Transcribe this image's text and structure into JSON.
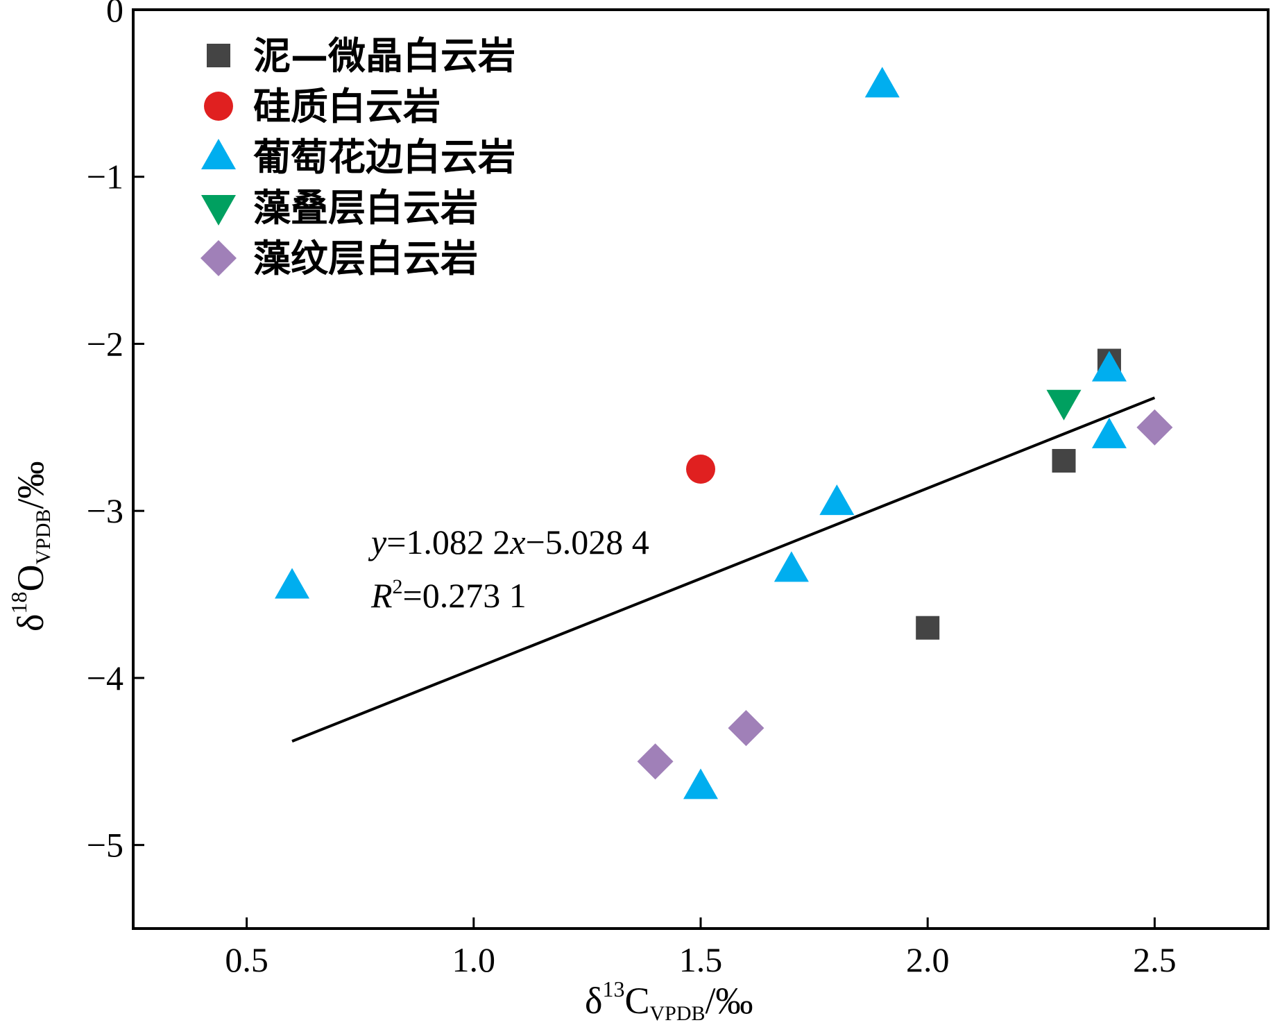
{
  "chart_data": {
    "type": "scatter",
    "title": "",
    "xlabel": {
      "prefix": "δ",
      "sup": "13",
      "main": "C",
      "sub": "VPDB",
      "suffix": "/‰"
    },
    "ylabel": {
      "prefix": "δ",
      "sup": "18",
      "main": "O",
      "sub": "VPDB",
      "suffix": "/‰"
    },
    "xlim": [
      0.25,
      2.75
    ],
    "ylim": [
      -5.5,
      0
    ],
    "xticks": [
      {
        "value": 0.5,
        "label": "0.5"
      },
      {
        "value": 1.0,
        "label": "1.0"
      },
      {
        "value": 1.5,
        "label": "1.5"
      },
      {
        "value": 2.0,
        "label": "2.0"
      },
      {
        "value": 2.5,
        "label": "2.5"
      }
    ],
    "yticks": [
      {
        "value": 0,
        "label": "0"
      },
      {
        "value": -1,
        "label": "−1"
      },
      {
        "value": -2,
        "label": "−2"
      },
      {
        "value": -3,
        "label": "−3"
      },
      {
        "value": -4,
        "label": "−4"
      },
      {
        "value": -5,
        "label": "−5"
      }
    ],
    "grid": false,
    "legend_position": "top-left",
    "series": [
      {
        "name": "泥—微晶白云岩",
        "marker": "square",
        "color": "#444444",
        "points": [
          [
            2.4,
            -2.1
          ],
          [
            2.3,
            -2.7
          ],
          [
            2.0,
            -3.7
          ]
        ]
      },
      {
        "name": "硅质白云岩",
        "marker": "circle",
        "color": "#e02020",
        "points": [
          [
            1.5,
            -2.75
          ]
        ]
      },
      {
        "name": "葡萄花边白云岩",
        "marker": "triangle-up",
        "color": "#00aeef",
        "points": [
          [
            1.9,
            -0.45
          ],
          [
            2.4,
            -2.15
          ],
          [
            2.4,
            -2.55
          ],
          [
            1.8,
            -2.95
          ],
          [
            1.7,
            -3.35
          ],
          [
            0.6,
            -3.45
          ],
          [
            1.5,
            -4.65
          ]
        ]
      },
      {
        "name": "藻叠层白云岩",
        "marker": "triangle-down",
        "color": "#00a060",
        "points": [
          [
            2.3,
            -2.35
          ]
        ]
      },
      {
        "name": "藻纹层白云岩",
        "marker": "diamond",
        "color": "#a080b8",
        "points": [
          [
            2.5,
            -2.5
          ],
          [
            1.6,
            -4.3
          ],
          [
            1.4,
            -4.5
          ]
        ]
      }
    ],
    "fit_line": {
      "slope": 1.0822,
      "intercept": -5.0284,
      "x_range": [
        0.6,
        2.5
      ],
      "color": "#000000"
    },
    "annotations": {
      "equation": {
        "y_var": "y",
        "rhs1": "=1.082 2",
        "x_var": "x",
        "rhs2": "−5.028 4"
      },
      "r2": {
        "var": "R",
        "sup": "2",
        "rhs": "=0.273 1"
      }
    }
  }
}
